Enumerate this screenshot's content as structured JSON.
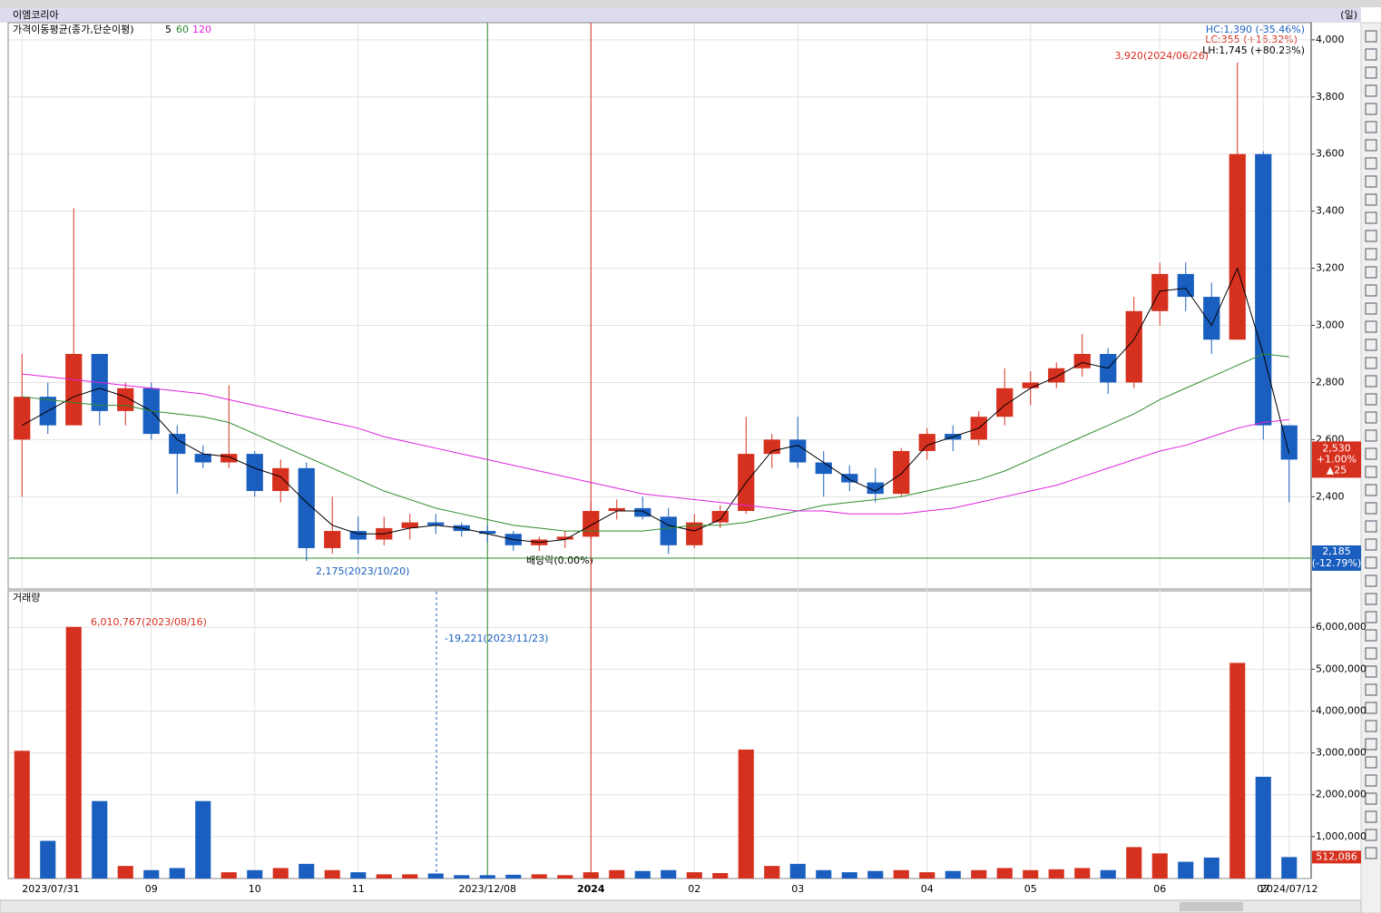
{
  "chart_data": [
    {
      "type": "candlestick",
      "title": "이엠코리아",
      "period": "(일)",
      "legend_title": "가격이동평균(종가,단순이평)",
      "categories": [
        "2023/07/31",
        null,
        null,
        null,
        null,
        "09",
        null,
        null,
        null,
        "10",
        null,
        null,
        null,
        "11",
        null,
        null,
        null,
        null,
        "2023/12/08",
        null,
        null,
        null,
        "2024",
        null,
        null,
        null,
        "02",
        null,
        null,
        null,
        "03",
        null,
        null,
        null,
        null,
        "04",
        null,
        null,
        null,
        "05",
        null,
        null,
        null,
        null,
        "06",
        null,
        null,
        null,
        "07",
        "2024/07/12"
      ],
      "open": [
        2600,
        2750,
        2650,
        2900,
        2700,
        2780,
        2620,
        2550,
        2520,
        2550,
        2420,
        2500,
        2220,
        2280,
        2250,
        2290,
        2310,
        2300,
        2280,
        2270,
        2230,
        2250,
        2260,
        2350,
        2360,
        2330,
        2230,
        2310,
        2350,
        2550,
        2600,
        2520,
        2480,
        2450,
        2410,
        2560,
        2620,
        2600,
        2680,
        2780,
        2800,
        2850,
        2900,
        2800,
        3050,
        3180,
        3100,
        2950,
        3600,
        2650
      ],
      "high": [
        2900,
        2800,
        3410,
        2900,
        2800,
        2800,
        2650,
        2580,
        2790,
        2560,
        2530,
        2520,
        2400,
        2330,
        2330,
        2340,
        2340,
        2310,
        2300,
        2280,
        2260,
        2280,
        2380,
        2390,
        2400,
        2360,
        2340,
        2370,
        2680,
        2620,
        2680,
        2560,
        2510,
        2500,
        2570,
        2640,
        2650,
        2700,
        2850,
        2840,
        2870,
        2970,
        2920,
        3100,
        3220,
        3220,
        3150,
        3920,
        3610,
        2650
      ],
      "low": [
        2400,
        2620,
        2650,
        2650,
        2650,
        2600,
        2410,
        2500,
        2500,
        2400,
        2380,
        2175,
        2200,
        2200,
        2230,
        2250,
        2270,
        2260,
        2240,
        2210,
        2210,
        2220,
        2250,
        2320,
        2320,
        2200,
        2220,
        2290,
        2340,
        2500,
        2500,
        2400,
        2420,
        2380,
        2400,
        2530,
        2560,
        2580,
        2650,
        2720,
        2780,
        2820,
        2760,
        2780,
        3000,
        3050,
        2900,
        2950,
        2600,
        2380
      ],
      "close": [
        2750,
        2650,
        2900,
        2700,
        2780,
        2620,
        2550,
        2520,
        2550,
        2420,
        2500,
        2220,
        2280,
        2250,
        2290,
        2310,
        2300,
        2280,
        2270,
        2230,
        2250,
        2260,
        2350,
        2360,
        2330,
        2230,
        2310,
        2350,
        2550,
        2600,
        2520,
        2480,
        2450,
        2410,
        2560,
        2620,
        2600,
        2680,
        2780,
        2800,
        2850,
        2900,
        2800,
        3050,
        3180,
        3100,
        2950,
        3600,
        2650,
        2530
      ],
      "up_color": "#d6301f",
      "down_color": "#1a5fbf",
      "ylim": [
        2080,
        4060
      ],
      "yticks": [
        {
          "value": 2400,
          "label": "2,400"
        },
        {
          "value": 2600,
          "label": "2,600"
        },
        {
          "value": 2800,
          "label": "2,800"
        },
        {
          "value": 3000,
          "label": "3,000"
        },
        {
          "value": 3200,
          "label": "3,200"
        },
        {
          "value": 3400,
          "label": "3,400"
        },
        {
          "value": 3600,
          "label": "3,600"
        },
        {
          "value": 3800,
          "label": "3,800"
        },
        {
          "value": 4000,
          "label": "4,000"
        }
      ],
      "grid": true,
      "moving_averages": [
        {
          "name": "5",
          "color": "#000000",
          "values": [
            2650,
            2700,
            2750,
            2780,
            2750,
            2700,
            2600,
            2550,
            2540,
            2500,
            2470,
            2380,
            2300,
            2270,
            2270,
            2290,
            2300,
            2290,
            2270,
            2250,
            2240,
            2250,
            2300,
            2350,
            2350,
            2300,
            2280,
            2320,
            2450,
            2560,
            2580,
            2520,
            2460,
            2420,
            2480,
            2580,
            2610,
            2640,
            2720,
            2780,
            2820,
            2870,
            2850,
            2950,
            3120,
            3130,
            3000,
            3200,
            2900,
            2550
          ]
        },
        {
          "name": "60",
          "color": "#2e8b2e",
          "values": [
            2750,
            2740,
            2730,
            2720,
            2720,
            2700,
            2690,
            2680,
            2660,
            2620,
            2580,
            2540,
            2500,
            2460,
            2420,
            2390,
            2360,
            2340,
            2320,
            2300,
            2290,
            2280,
            2280,
            2280,
            2280,
            2290,
            2300,
            2300,
            2310,
            2330,
            2350,
            2370,
            2380,
            2390,
            2400,
            2420,
            2440,
            2460,
            2490,
            2530,
            2570,
            2610,
            2650,
            2690,
            2740,
            2780,
            2820,
            2860,
            2900,
            2890
          ]
        },
        {
          "name": "120",
          "color": "#e020e0",
          "values": [
            2830,
            2820,
            2810,
            2800,
            2790,
            2780,
            2770,
            2760,
            2740,
            2720,
            2700,
            2680,
            2660,
            2640,
            2610,
            2590,
            2570,
            2550,
            2530,
            2510,
            2490,
            2470,
            2450,
            2430,
            2410,
            2400,
            2390,
            2380,
            2370,
            2360,
            2350,
            2350,
            2340,
            2340,
            2340,
            2350,
            2360,
            2380,
            2400,
            2420,
            2440,
            2470,
            2500,
            2530,
            2560,
            2580,
            2610,
            2640,
            2660,
            2670
          ]
        }
      ],
      "annotations": {
        "hc": "HC:1,390 (-35.46%)",
        "lc": "LC:355 (+16.32%)",
        "lh": "LH:1,745 (+80.23%)",
        "high": "3,920(2024/06/26)",
        "low": "2,175(2023/10/20)",
        "dividend": "배당락(0.00%)"
      },
      "current_price": {
        "value": 2530,
        "label": "2,530",
        "change": "+1.00%",
        "diff": "▲25"
      },
      "reference_line": {
        "value": 2185,
        "label": "2,185",
        "change": "(-12.79%)"
      }
    },
    {
      "type": "bar",
      "title": "거래량",
      "values": [
        3050000,
        900000,
        6010767,
        1850000,
        300000,
        200000,
        250000,
        1850000,
        150000,
        200000,
        250000,
        350000,
        200000,
        150000,
        100000,
        100000,
        120000,
        80000,
        80000,
        90000,
        100000,
        80000,
        150000,
        200000,
        180000,
        200000,
        150000,
        130000,
        3080000,
        300000,
        350000,
        200000,
        150000,
        180000,
        200000,
        150000,
        180000,
        200000,
        250000,
        200000,
        220000,
        250000,
        200000,
        750000,
        600000,
        400000,
        500000,
        5150000,
        2430000,
        512086
      ],
      "ylim": [
        0,
        6850000
      ],
      "yticks": [
        {
          "value": 1000000,
          "label": "1,000,000"
        },
        {
          "value": 2000000,
          "label": "2,000,000"
        },
        {
          "value": 3000000,
          "label": "3,000,000"
        },
        {
          "value": 4000000,
          "label": "4,000,000"
        },
        {
          "value": 5000000,
          "label": "5,000,000"
        },
        {
          "value": 6000000,
          "label": "6,000,000"
        }
      ],
      "grid": true,
      "annotations": {
        "max": "6,010,767(2023/08/16)",
        "change": "-19,221(2023/11/23)"
      },
      "last_label": {
        "value": 512086,
        "label": "512,086"
      }
    }
  ]
}
